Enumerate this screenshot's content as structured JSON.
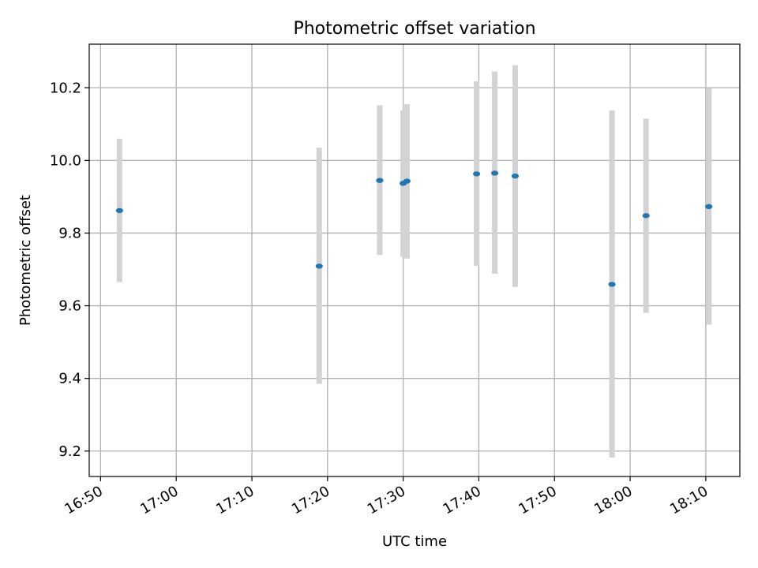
{
  "chart_data": {
    "type": "scatter",
    "title": "Photometric offset variation",
    "xlabel": "UTC time",
    "ylabel": "Photometric offset",
    "x_range": [
      "16:48:30",
      "18:14:30"
    ],
    "ylim": [
      9.13,
      10.32
    ],
    "x_ticks": [
      "16:50",
      "17:00",
      "17:10",
      "17:20",
      "17:30",
      "17:40",
      "17:50",
      "18:00",
      "18:10"
    ],
    "y_ticks": [
      "9.2",
      "9.4",
      "9.6",
      "9.8",
      "10.0",
      "10.2"
    ],
    "grid": true,
    "colors": {
      "marker": "#1f77b4",
      "errorbar": "#d3d3d3",
      "grid": "#b0b0b0"
    },
    "points": [
      {
        "time": "16:52:30",
        "y": 9.862,
        "err_low": 9.665,
        "err_high": 10.06
      },
      {
        "time": "17:18:54",
        "y": 9.709,
        "err_low": 9.385,
        "err_high": 10.035
      },
      {
        "time": "17:26:54",
        "y": 9.945,
        "err_low": 9.74,
        "err_high": 10.152
      },
      {
        "time": "17:30:00",
        "y": 9.937,
        "err_low": 9.735,
        "err_high": 10.138
      },
      {
        "time": "17:30:30",
        "y": 9.943,
        "err_low": 9.73,
        "err_high": 10.155
      },
      {
        "time": "17:39:42",
        "y": 9.963,
        "err_low": 9.71,
        "err_high": 10.218
      },
      {
        "time": "17:42:06",
        "y": 9.965,
        "err_low": 9.688,
        "err_high": 10.245
      },
      {
        "time": "17:44:48",
        "y": 9.957,
        "err_low": 9.652,
        "err_high": 10.262
      },
      {
        "time": "17:57:36",
        "y": 9.659,
        "err_low": 9.182,
        "err_high": 10.138
      },
      {
        "time": "18:02:06",
        "y": 9.848,
        "err_low": 9.58,
        "err_high": 10.115
      },
      {
        "time": "18:10:24",
        "y": 9.873,
        "err_low": 9.548,
        "err_high": 10.198
      }
    ]
  }
}
